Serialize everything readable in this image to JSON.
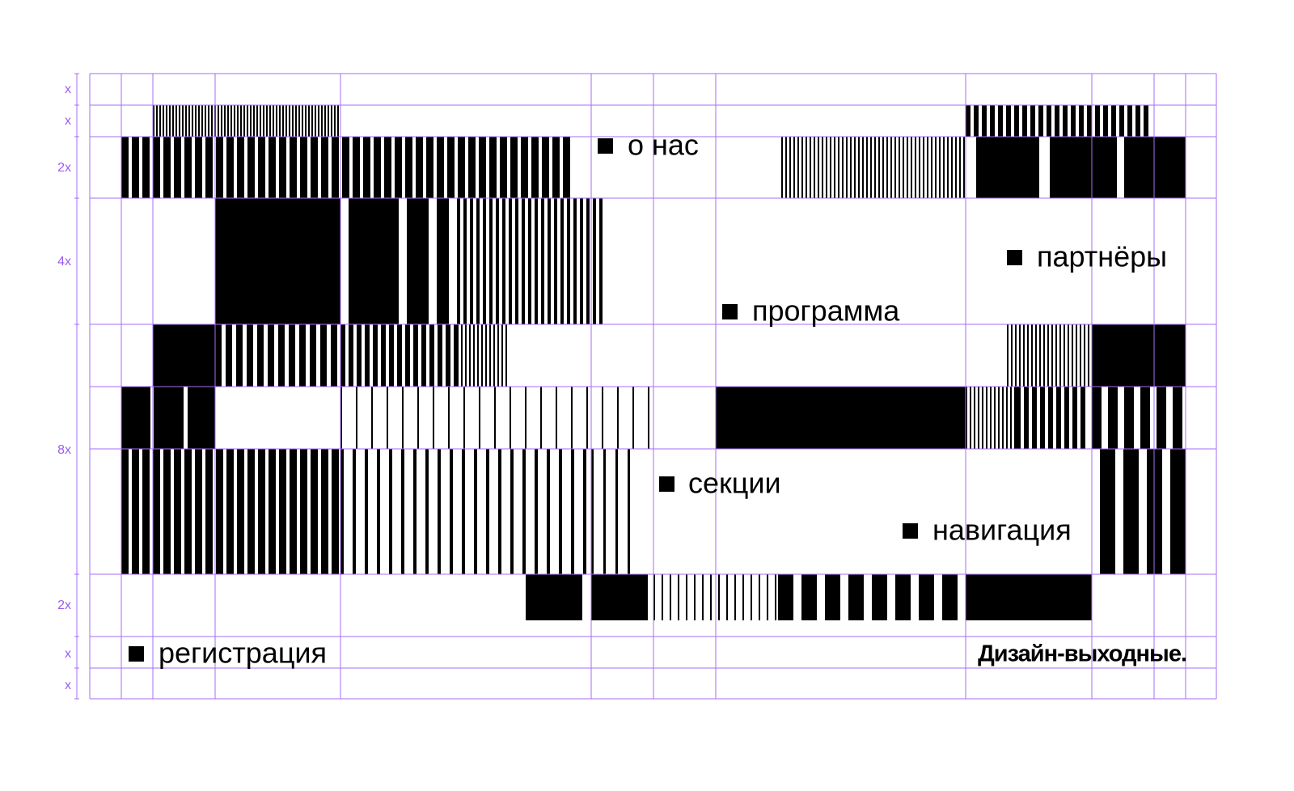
{
  "grid_labels": [
    "x",
    "x",
    "2x",
    "4x",
    "8x",
    "2x",
    "x",
    "x"
  ],
  "nav": [
    "о нас",
    "программа",
    "партнёры",
    "секции",
    "навигация",
    "регистрация"
  ],
  "title": "Дизайн-выходные."
}
